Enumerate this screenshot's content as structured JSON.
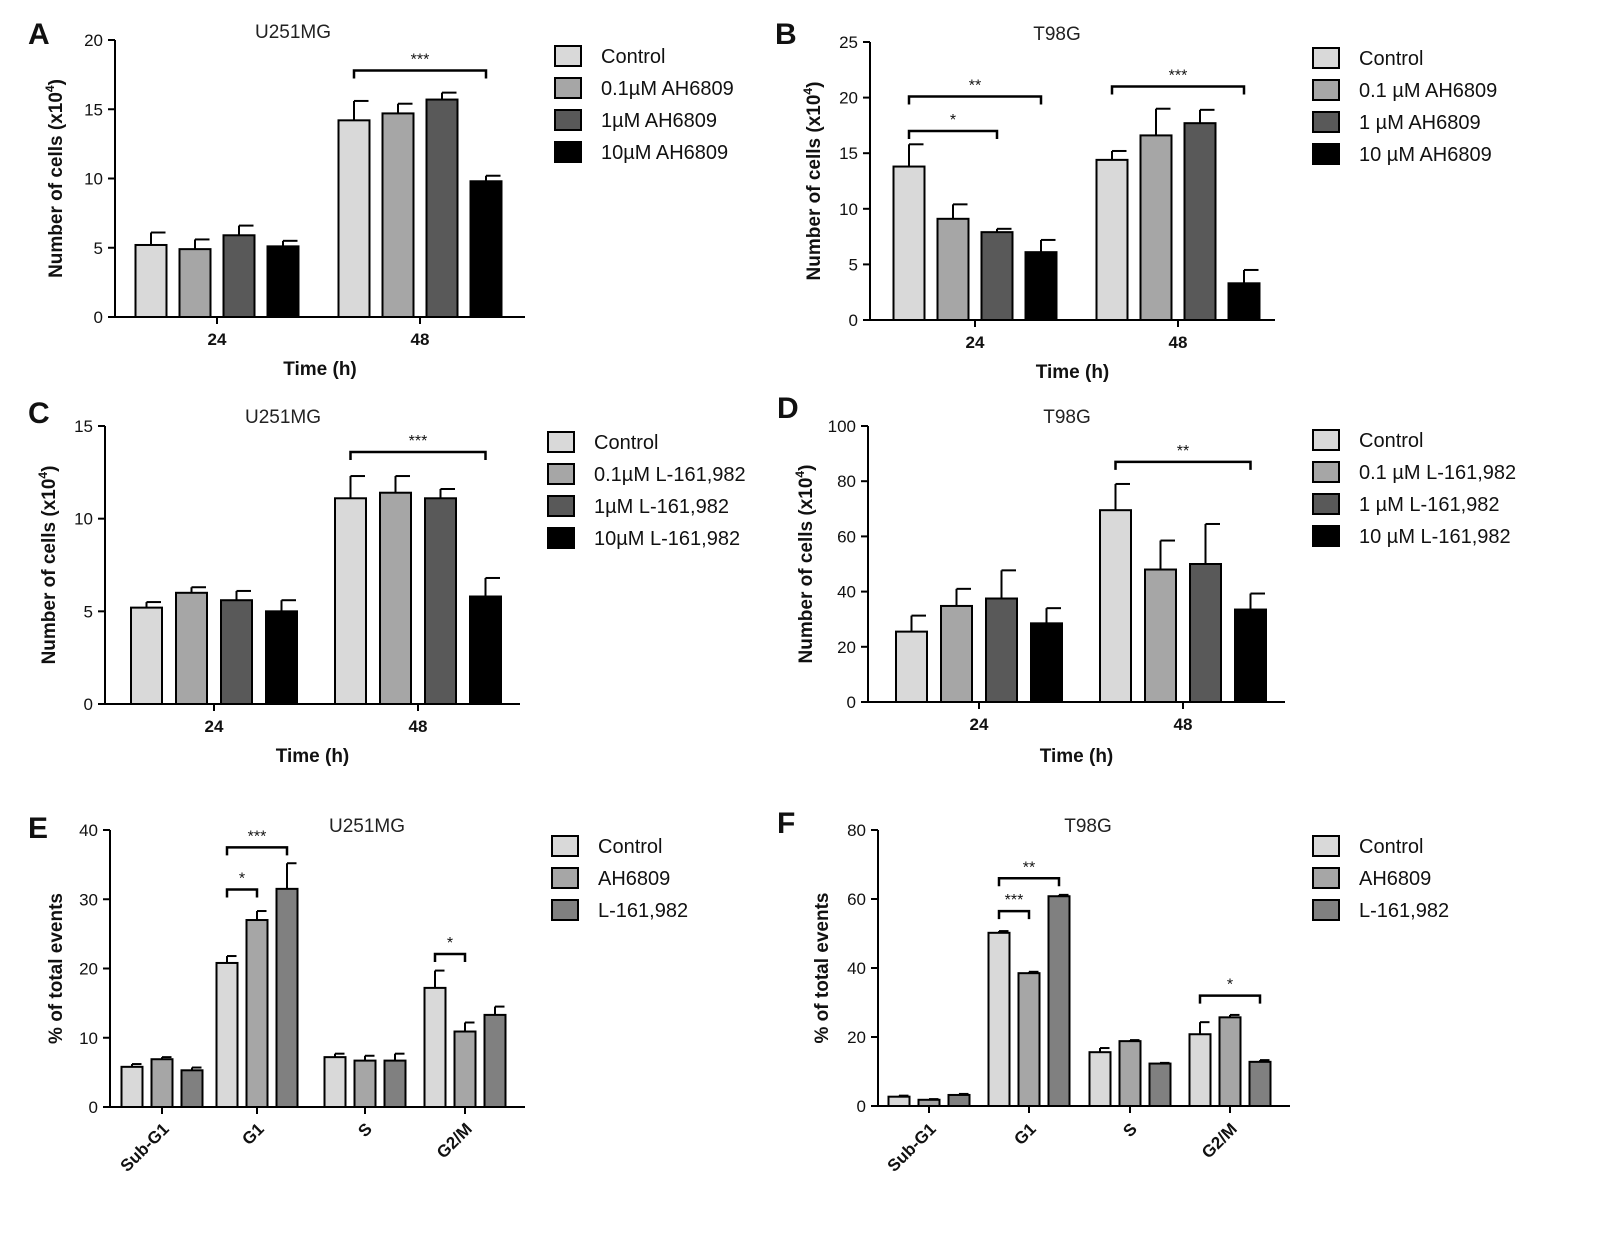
{
  "chart_data": [
    {
      "panel": "A",
      "type": "bar",
      "title": "U251MG",
      "xlabel": "Time (h)",
      "ylabel": "Number of cells (x10",
      "ylabel_sup": "4",
      "ylabel_end": ")",
      "ylim": [
        0,
        20
      ],
      "yticks": [
        0,
        5,
        10,
        15,
        20
      ],
      "categories": [
        "24",
        "48"
      ],
      "colors": [
        "#d9d9d9",
        "#a6a6a6",
        "#595959",
        "#000000"
      ],
      "series": [
        {
          "name": "Control",
          "values": [
            5.2,
            14.2
          ],
          "errors": [
            0.9,
            1.4
          ]
        },
        {
          "name": "0.1µM AH6809",
          "values": [
            4.9,
            14.7
          ],
          "errors": [
            0.7,
            0.7
          ]
        },
        {
          "name": "1µM AH6809",
          "values": [
            5.9,
            15.7
          ],
          "errors": [
            0.7,
            0.5
          ]
        },
        {
          "name": "10µM AH6809",
          "values": [
            5.1,
            9.8
          ],
          "errors": [
            0.4,
            0.4
          ]
        }
      ],
      "significance": [
        {
          "category": 1,
          "from": 0,
          "to": 3,
          "label": "***",
          "y": 17.8
        }
      ]
    },
    {
      "panel": "B",
      "type": "bar",
      "title": "T98G",
      "xlabel": "Time (h)",
      "ylabel": "Number of cells (x10",
      "ylabel_sup": "4",
      "ylabel_end": ")",
      "ylim": [
        0,
        25
      ],
      "yticks": [
        0,
        5,
        10,
        15,
        20,
        25
      ],
      "categories": [
        "24",
        "48"
      ],
      "colors": [
        "#d9d9d9",
        "#a6a6a6",
        "#595959",
        "#000000"
      ],
      "series": [
        {
          "name": "Control",
          "values": [
            13.8,
            14.4
          ],
          "errors": [
            2.0,
            0.8
          ]
        },
        {
          "name": "0.1 µM AH6809",
          "values": [
            9.1,
            16.6
          ],
          "errors": [
            1.3,
            2.4
          ]
        },
        {
          "name": "1 µM AH6809",
          "values": [
            7.9,
            17.7
          ],
          "errors": [
            0.3,
            1.2
          ]
        },
        {
          "name": "10 µM AH6809",
          "values": [
            6.1,
            3.3
          ],
          "errors": [
            1.1,
            1.2
          ]
        }
      ],
      "significance": [
        {
          "category": 0,
          "from": 0,
          "to": 3,
          "label": "**",
          "y": 20.1
        },
        {
          "category": 0,
          "from": 0,
          "to": 2,
          "label": "*",
          "y": 17.0
        },
        {
          "category": 1,
          "from": 0,
          "to": 3,
          "label": "***",
          "y": 21.0
        }
      ]
    },
    {
      "panel": "C",
      "type": "bar",
      "title": "U251MG",
      "xlabel": "Time (h)",
      "ylabel": "Number of cells (x10",
      "ylabel_sup": "4",
      "ylabel_end": ")",
      "ylim": [
        0,
        15
      ],
      "yticks": [
        0,
        5,
        10,
        15
      ],
      "categories": [
        "24",
        "48"
      ],
      "colors": [
        "#d9d9d9",
        "#a6a6a6",
        "#595959",
        "#000000"
      ],
      "series": [
        {
          "name": "Control",
          "values": [
            5.2,
            11.1
          ],
          "errors": [
            0.3,
            1.2
          ]
        },
        {
          "name": "0.1µM L-161,982",
          "values": [
            6.0,
            11.4
          ],
          "errors": [
            0.3,
            0.9
          ]
        },
        {
          "name": "1µM L-161,982",
          "values": [
            5.6,
            11.1
          ],
          "errors": [
            0.5,
            0.5
          ]
        },
        {
          "name": "10µM L-161,982",
          "values": [
            5.0,
            5.8
          ],
          "errors": [
            0.6,
            1.0
          ]
        }
      ],
      "significance": [
        {
          "category": 1,
          "from": 0,
          "to": 3,
          "label": "***",
          "y": 13.6
        }
      ]
    },
    {
      "panel": "D",
      "type": "bar",
      "title": "T98G",
      "xlabel": "Time (h)",
      "ylabel": "Number of cells (x10",
      "ylabel_sup": "4",
      "ylabel_end": ")",
      "ylim": [
        0,
        100
      ],
      "yticks": [
        0,
        20,
        40,
        60,
        80,
        100
      ],
      "categories": [
        "24",
        "48"
      ],
      "colors": [
        "#d9d9d9",
        "#a6a6a6",
        "#595959",
        "#000000"
      ],
      "series": [
        {
          "name": "Control",
          "values": [
            25.5,
            69.5
          ],
          "errors": [
            5.8,
            9.5
          ]
        },
        {
          "name": "0.1 µM L-161,982",
          "values": [
            34.8,
            48.0
          ],
          "errors": [
            6.2,
            10.5
          ]
        },
        {
          "name": "1 µM L-161,982",
          "values": [
            37.5,
            50.0
          ],
          "errors": [
            10.2,
            14.5
          ]
        },
        {
          "name": "10 µM L-161,982",
          "values": [
            28.5,
            33.5
          ],
          "errors": [
            5.5,
            5.8
          ]
        }
      ],
      "significance": [
        {
          "category": 1,
          "from": 0,
          "to": 3,
          "label": "**",
          "y": 87.0
        }
      ]
    },
    {
      "panel": "E",
      "type": "bar",
      "title": "U251MG",
      "xlabel": "",
      "ylabel": "% of total events",
      "ylim": [
        0,
        40
      ],
      "yticks": [
        0,
        10,
        20,
        30,
        40
      ],
      "categories": [
        "Sub-G1",
        "G1",
        "S",
        "G2/M"
      ],
      "colors": [
        "#d9d9d9",
        "#a6a6a6",
        "#808080"
      ],
      "series": [
        {
          "name": "Control",
          "values": [
            5.8,
            20.8,
            7.2,
            17.2
          ],
          "errors": [
            0.4,
            1.0,
            0.5,
            2.5
          ]
        },
        {
          "name": "AH6809",
          "values": [
            6.9,
            27.0,
            6.7,
            10.9
          ],
          "errors": [
            0.3,
            1.3,
            0.7,
            1.3
          ]
        },
        {
          "name": "L-161,982",
          "values": [
            5.3,
            31.5,
            6.7,
            13.3
          ],
          "errors": [
            0.4,
            3.7,
            1.0,
            1.2
          ]
        }
      ],
      "significance": [
        {
          "category": 1,
          "from": 0,
          "to": 2,
          "label": "***",
          "y": 37.5
        },
        {
          "category": 1,
          "from": 0,
          "to": 1,
          "label": "*",
          "y": 31.4
        },
        {
          "category": 3,
          "from": 0,
          "to": 1,
          "label": "*",
          "y": 22.1
        }
      ]
    },
    {
      "panel": "F",
      "type": "bar",
      "title": "T98G",
      "xlabel": "",
      "ylabel": "% of total events",
      "ylim": [
        0,
        80
      ],
      "yticks": [
        0,
        20,
        40,
        60,
        80
      ],
      "categories": [
        "Sub-G1",
        "G1",
        "S",
        "G2/M"
      ],
      "colors": [
        "#d9d9d9",
        "#a6a6a6",
        "#808080"
      ],
      "series": [
        {
          "name": "Control",
          "values": [
            2.7,
            50.2,
            15.6,
            20.8
          ],
          "errors": [
            0.3,
            0.5,
            1.2,
            3.5
          ]
        },
        {
          "name": "AH6809",
          "values": [
            1.8,
            38.5,
            18.8,
            25.7
          ],
          "errors": [
            0.2,
            0.4,
            0.3,
            0.7
          ]
        },
        {
          "name": "L-161,982",
          "values": [
            3.2,
            60.8,
            12.3,
            12.8
          ],
          "errors": [
            0.3,
            0.4,
            0.2,
            0.5
          ]
        }
      ],
      "significance": [
        {
          "category": 1,
          "from": 0,
          "to": 2,
          "label": "**",
          "y": 66.0
        },
        {
          "category": 1,
          "from": 0,
          "to": 1,
          "label": "***",
          "y": 56.5
        },
        {
          "category": 3,
          "from": 0,
          "to": 2,
          "label": "*",
          "y": 32.0
        }
      ]
    }
  ]
}
